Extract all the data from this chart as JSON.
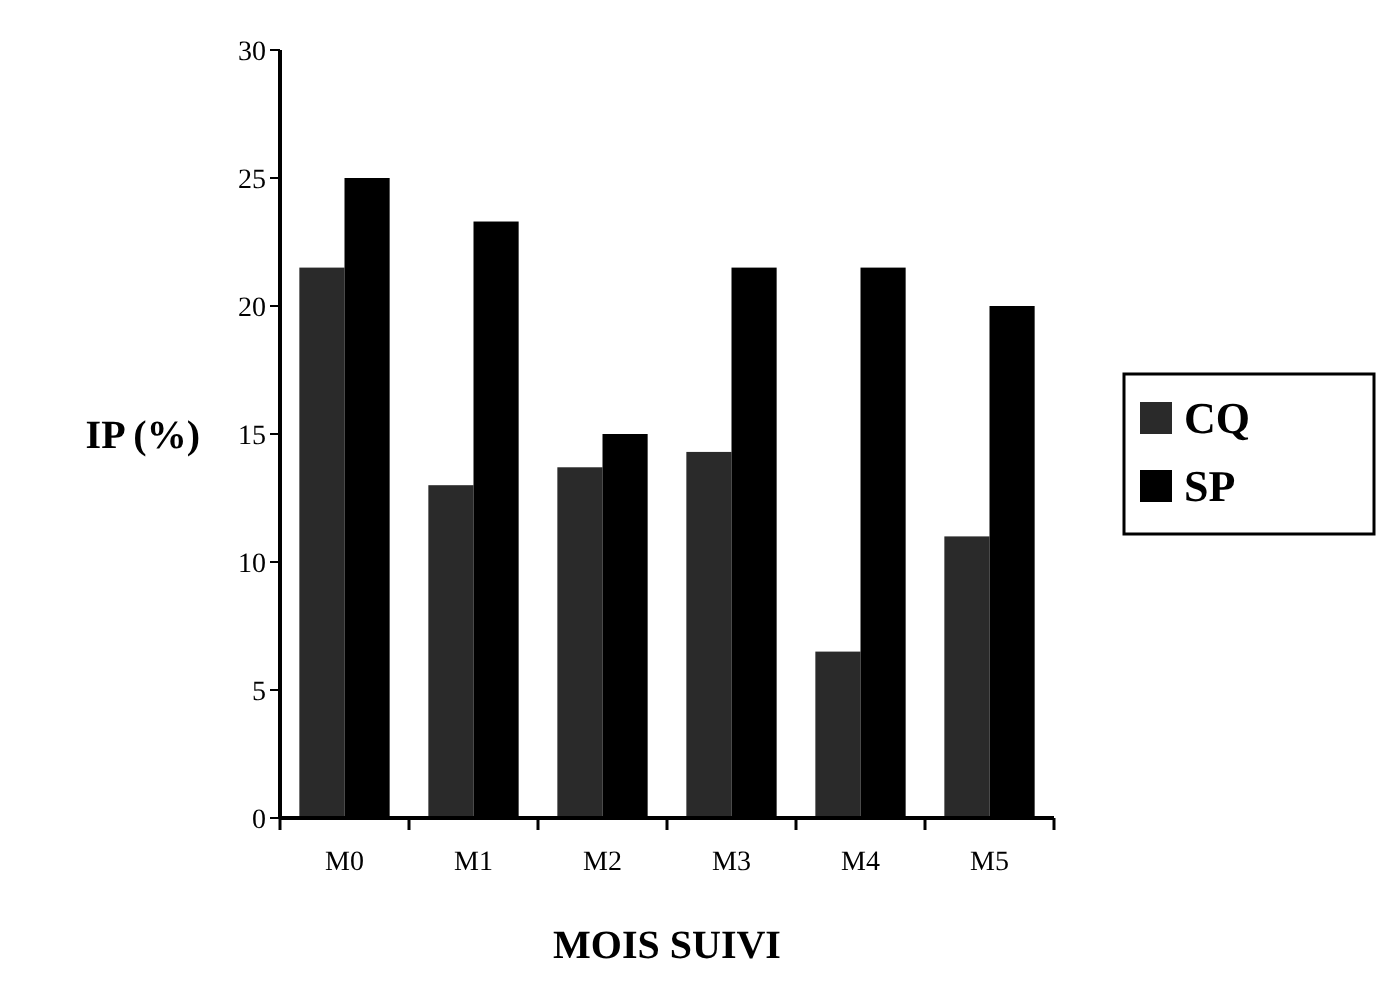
{
  "chart_data": {
    "type": "bar",
    "xlabel": "MOIS SUIVI",
    "ylabel": "IP (%)",
    "categories": [
      "M0",
      "M1",
      "M2",
      "M3",
      "M4",
      "M5"
    ],
    "series": [
      {
        "name": "CQ",
        "color": "#2a2a2a",
        "values": [
          21.5,
          13,
          13.7,
          14.3,
          6.5,
          11
        ]
      },
      {
        "name": "SP",
        "color": "#000000",
        "values": [
          25,
          23.3,
          15,
          21.5,
          21.5,
          20
        ]
      }
    ],
    "ylim": [
      0,
      30
    ],
    "yticks": [
      0,
      5,
      10,
      15,
      20,
      25,
      30
    ],
    "grid": false,
    "legend": "right"
  }
}
